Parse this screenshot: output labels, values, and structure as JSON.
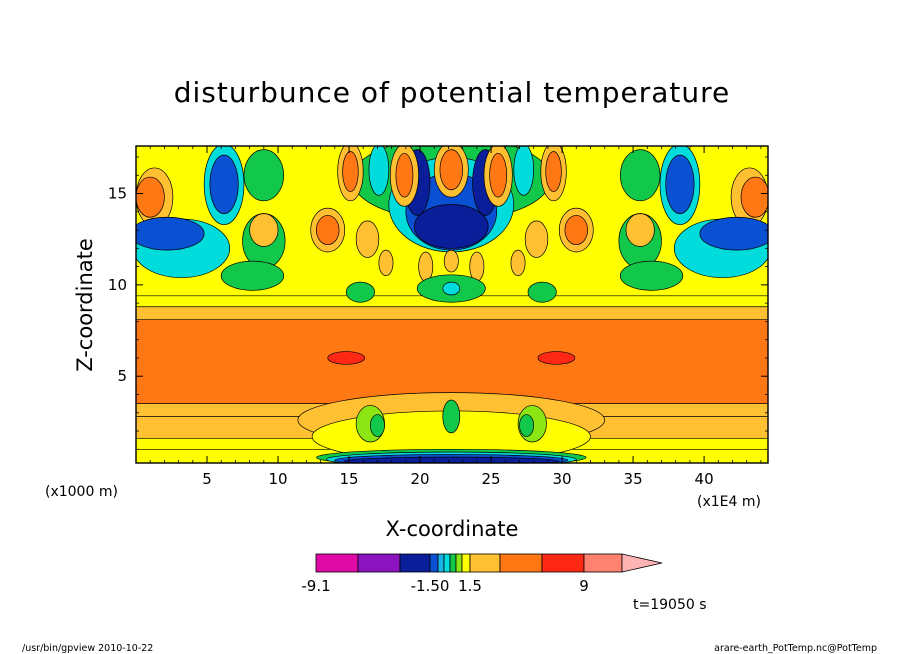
{
  "chart_data": {
    "type": "heatmap",
    "title": "disturbunce of potential temperature",
    "xlabel": "X-coordinate",
    "ylabel": "Z-coordinate",
    "x_unit": "(x1E4 m)",
    "y_unit": "(x1000 m)",
    "xlim": [
      0,
      44.5
    ],
    "ylim": [
      0.25,
      17.6
    ],
    "x_ticks": [
      5,
      10,
      15,
      20,
      25,
      30,
      35,
      40
    ],
    "y_ticks": [
      5,
      10,
      15
    ],
    "colorbar": {
      "labels": [
        "-9.1",
        "-1.50",
        "1.5",
        "9"
      ],
      "colors": [
        "#e00aa6",
        "#8c14be",
        "#0a1e9a",
        "#0a50d2",
        "#18b4e6",
        "#00dcdc",
        "#12c84a",
        "#8ce614",
        "#ffff00",
        "#ffc032",
        "#ff7814",
        "#ff2814",
        "#ff8270",
        "#ffb4b4"
      ]
    },
    "bands": [
      {
        "zmin": 0.25,
        "zmax": 1.0,
        "color": "#ffff00"
      },
      {
        "zmin": 1.0,
        "zmax": 1.6,
        "color": "#ffff00"
      },
      {
        "zmin": 1.6,
        "zmax": 2.8,
        "color": "#ffc032"
      },
      {
        "zmin": 2.8,
        "zmax": 3.5,
        "color": "#ffc032"
      },
      {
        "zmin": 3.5,
        "zmax": 8.1,
        "color": "#ff7814"
      },
      {
        "zmin": 8.1,
        "zmax": 8.8,
        "color": "#ffc032"
      },
      {
        "zmin": 8.8,
        "zmax": 9.4,
        "color": "#ffff00"
      },
      {
        "zmin": 9.4,
        "zmax": 17.6,
        "color": "#ffff00"
      }
    ],
    "blobs": [
      {
        "x": 1.3,
        "z": 14.8,
        "rx": 1.3,
        "rz": 1.6,
        "color": "#ffc032"
      },
      {
        "x": 1.0,
        "z": 14.8,
        "rx": 1.0,
        "rz": 1.1,
        "color": "#ff7814"
      },
      {
        "x": 43.2,
        "z": 14.8,
        "rx": 1.3,
        "rz": 1.6,
        "color": "#ffc032"
      },
      {
        "x": 43.6,
        "z": 14.8,
        "rx": 1.0,
        "rz": 1.1,
        "color": "#ff7814"
      },
      {
        "x": 3.2,
        "z": 12.0,
        "rx": 3.4,
        "rz": 1.6,
        "color": "#00dcdc"
      },
      {
        "x": 2.2,
        "z": 12.8,
        "rx": 2.6,
        "rz": 0.9,
        "color": "#0a50d2"
      },
      {
        "x": 41.3,
        "z": 12.0,
        "rx": 3.4,
        "rz": 1.6,
        "color": "#00dcdc"
      },
      {
        "x": 42.3,
        "z": 12.8,
        "rx": 2.6,
        "rz": 0.9,
        "color": "#0a50d2"
      },
      {
        "x": 6.2,
        "z": 15.5,
        "rx": 1.4,
        "rz": 2.2,
        "color": "#00dcdc"
      },
      {
        "x": 6.2,
        "z": 15.5,
        "rx": 1.0,
        "rz": 1.6,
        "color": "#0a50d2"
      },
      {
        "x": 38.3,
        "z": 15.5,
        "rx": 1.4,
        "rz": 2.2,
        "color": "#00dcdc"
      },
      {
        "x": 38.3,
        "z": 15.5,
        "rx": 1.0,
        "rz": 1.6,
        "color": "#0a50d2"
      },
      {
        "x": 9.0,
        "z": 16.0,
        "rx": 1.4,
        "rz": 1.4,
        "color": "#12c84a"
      },
      {
        "x": 35.5,
        "z": 16.0,
        "rx": 1.4,
        "rz": 1.4,
        "color": "#12c84a"
      },
      {
        "x": 9.0,
        "z": 12.4,
        "rx": 1.5,
        "rz": 1.5,
        "color": "#12c84a"
      },
      {
        "x": 35.5,
        "z": 12.4,
        "rx": 1.5,
        "rz": 1.5,
        "color": "#12c84a"
      },
      {
        "x": 8.2,
        "z": 10.5,
        "rx": 2.2,
        "rz": 0.8,
        "color": "#12c84a"
      },
      {
        "x": 36.3,
        "z": 10.5,
        "rx": 2.2,
        "rz": 0.8,
        "color": "#12c84a"
      },
      {
        "x": 9.0,
        "z": 13.0,
        "rx": 1.0,
        "rz": 0.9,
        "color": "#ffc032"
      },
      {
        "x": 35.5,
        "z": 13.0,
        "rx": 1.0,
        "rz": 0.9,
        "color": "#ffc032"
      },
      {
        "x": 13.5,
        "z": 13.0,
        "rx": 1.2,
        "rz": 1.2,
        "color": "#ffc032"
      },
      {
        "x": 13.5,
        "z": 13.0,
        "rx": 0.8,
        "rz": 0.8,
        "color": "#ff7814"
      },
      {
        "x": 31.0,
        "z": 13.0,
        "rx": 1.2,
        "rz": 1.2,
        "color": "#ffc032"
      },
      {
        "x": 31.0,
        "z": 13.0,
        "rx": 0.8,
        "rz": 0.8,
        "color": "#ff7814"
      },
      {
        "x": 22.2,
        "z": 15.8,
        "rx": 7.0,
        "rz": 2.3,
        "color": "#12c84a"
      },
      {
        "x": 22.2,
        "z": 14.4,
        "rx": 4.4,
        "rz": 2.6,
        "color": "#00dcdc"
      },
      {
        "x": 22.2,
        "z": 14.0,
        "rx": 3.2,
        "rz": 2.1,
        "color": "#0a50d2"
      },
      {
        "x": 22.2,
        "z": 13.2,
        "rx": 2.6,
        "rz": 1.2,
        "color": "#0a1e9a"
      },
      {
        "x": 19.8,
        "z": 15.6,
        "rx": 0.9,
        "rz": 1.8,
        "color": "#0a1e9a"
      },
      {
        "x": 24.6,
        "z": 15.6,
        "rx": 0.9,
        "rz": 1.8,
        "color": "#0a1e9a"
      },
      {
        "x": 15.1,
        "z": 16.2,
        "rx": 0.9,
        "rz": 1.6,
        "color": "#ffc032"
      },
      {
        "x": 15.1,
        "z": 16.2,
        "rx": 0.55,
        "rz": 1.1,
        "color": "#ff7814"
      },
      {
        "x": 17.1,
        "z": 16.3,
        "rx": 0.7,
        "rz": 1.4,
        "color": "#00dcdc"
      },
      {
        "x": 18.9,
        "z": 16.0,
        "rx": 1.0,
        "rz": 1.7,
        "color": "#ffc032"
      },
      {
        "x": 18.9,
        "z": 16.0,
        "rx": 0.6,
        "rz": 1.2,
        "color": "#ff7814"
      },
      {
        "x": 22.2,
        "z": 16.3,
        "rx": 1.2,
        "rz": 1.5,
        "color": "#ffc032"
      },
      {
        "x": 22.2,
        "z": 16.3,
        "rx": 0.8,
        "rz": 1.1,
        "color": "#ff7814"
      },
      {
        "x": 25.5,
        "z": 16.0,
        "rx": 1.0,
        "rz": 1.7,
        "color": "#ffc032"
      },
      {
        "x": 25.5,
        "z": 16.0,
        "rx": 0.6,
        "rz": 1.2,
        "color": "#ff7814"
      },
      {
        "x": 27.3,
        "z": 16.3,
        "rx": 0.7,
        "rz": 1.4,
        "color": "#00dcdc"
      },
      {
        "x": 29.4,
        "z": 16.2,
        "rx": 0.9,
        "rz": 1.6,
        "color": "#ffc032"
      },
      {
        "x": 29.4,
        "z": 16.2,
        "rx": 0.55,
        "rz": 1.1,
        "color": "#ff7814"
      },
      {
        "x": 16.3,
        "z": 12.5,
        "rx": 0.8,
        "rz": 1.0,
        "color": "#ffc032"
      },
      {
        "x": 28.2,
        "z": 12.5,
        "rx": 0.8,
        "rz": 1.0,
        "color": "#ffc032"
      },
      {
        "x": 17.6,
        "z": 11.2,
        "rx": 0.5,
        "rz": 0.7,
        "color": "#ffc032"
      },
      {
        "x": 26.9,
        "z": 11.2,
        "rx": 0.5,
        "rz": 0.7,
        "color": "#ffc032"
      },
      {
        "x": 20.4,
        "z": 11.0,
        "rx": 0.5,
        "rz": 0.8,
        "color": "#ffc032"
      },
      {
        "x": 24.0,
        "z": 11.0,
        "rx": 0.5,
        "rz": 0.8,
        "color": "#ffc032"
      },
      {
        "x": 22.2,
        "z": 11.3,
        "rx": 0.5,
        "rz": 0.6,
        "color": "#ffc032"
      },
      {
        "x": 22.2,
        "z": 9.8,
        "rx": 2.4,
        "rz": 0.75,
        "color": "#12c84a"
      },
      {
        "x": 22.2,
        "z": 9.8,
        "rx": 0.6,
        "rz": 0.35,
        "color": "#00dcdc"
      },
      {
        "x": 15.8,
        "z": 9.6,
        "rx": 1.0,
        "rz": 0.55,
        "color": "#12c84a"
      },
      {
        "x": 28.6,
        "z": 9.6,
        "rx": 1.0,
        "rz": 0.55,
        "color": "#12c84a"
      },
      {
        "x": 14.8,
        "z": 6.0,
        "rx": 1.3,
        "rz": 0.35,
        "color": "#ff2814"
      },
      {
        "x": 29.6,
        "z": 6.0,
        "rx": 1.3,
        "rz": 0.35,
        "color": "#ff2814"
      },
      {
        "x": 22.2,
        "z": 2.6,
        "rx": 10.8,
        "rz": 1.5,
        "color": "#ffc032"
      },
      {
        "x": 22.2,
        "z": 1.7,
        "rx": 9.8,
        "rz": 1.4,
        "color": "#ffff00"
      },
      {
        "x": 16.5,
        "z": 2.4,
        "rx": 1.0,
        "rz": 1.0,
        "color": "#8ce614"
      },
      {
        "x": 17.0,
        "z": 2.3,
        "rx": 0.5,
        "rz": 0.6,
        "color": "#12c84a"
      },
      {
        "x": 27.9,
        "z": 2.4,
        "rx": 1.0,
        "rz": 1.0,
        "color": "#8ce614"
      },
      {
        "x": 27.5,
        "z": 2.3,
        "rx": 0.5,
        "rz": 0.6,
        "color": "#12c84a"
      },
      {
        "x": 22.2,
        "z": 2.8,
        "rx": 0.6,
        "rz": 0.9,
        "color": "#12c84a"
      },
      {
        "x": 22.2,
        "z": 0.55,
        "rx": 9.5,
        "rz": 0.45,
        "color": "#12c84a"
      },
      {
        "x": 22.2,
        "z": 0.45,
        "rx": 8.8,
        "rz": 0.4,
        "color": "#00dcdc"
      },
      {
        "x": 22.2,
        "z": 0.4,
        "rx": 8.2,
        "rz": 0.32,
        "color": "#0a50d2"
      },
      {
        "x": 22.2,
        "z": 0.35,
        "rx": 7.6,
        "rz": 0.22,
        "color": "#0a1e9a"
      }
    ]
  },
  "time_label": "t=19050 s",
  "footer": {
    "left": "/usr/bin/gpview  2010-10-22",
    "right": "arare-earth_PotTemp.nc@PotTemp"
  }
}
